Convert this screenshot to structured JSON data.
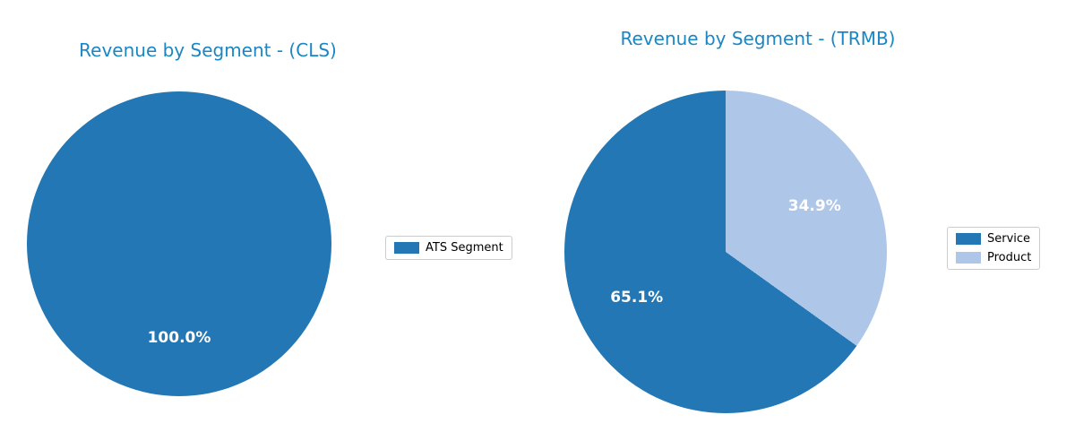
{
  "figure": {
    "background": "#ffffff",
    "title_color": "#1a87c4"
  },
  "chart_data": [
    {
      "type": "pie",
      "title": "Revenue by Segment - (CLS)",
      "labels": [
        "ATS Segment"
      ],
      "values": [
        100.0
      ],
      "autopct_labels": [
        "100.0%"
      ],
      "colors": [
        "#2277b4"
      ],
      "start_angle": 90,
      "counterclock": true,
      "pct_distance": 0.62,
      "legend_position": "right"
    },
    {
      "type": "pie",
      "title": "Revenue by Segment - (TRMB)",
      "labels": [
        "Service",
        "Product"
      ],
      "values": [
        65.1,
        34.9
      ],
      "autopct_labels": [
        "65.1%",
        "34.9%"
      ],
      "colors": [
        "#2277b4",
        "#aec7e8"
      ],
      "start_angle": 90,
      "counterclock": true,
      "pct_distance": 0.62,
      "legend_position": "right"
    }
  ]
}
